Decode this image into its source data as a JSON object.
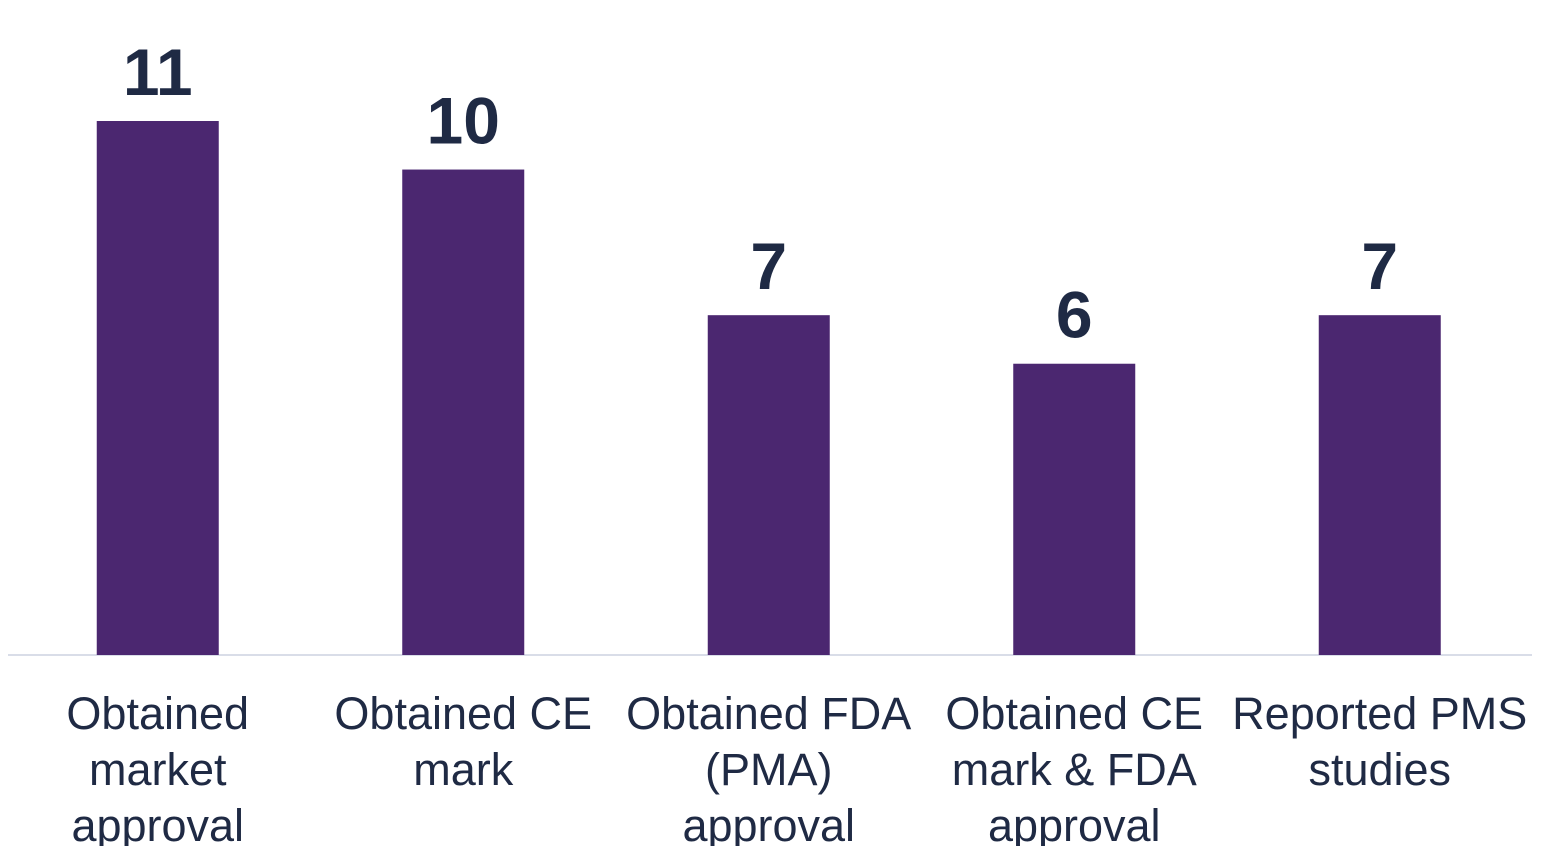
{
  "chart_data": {
    "type": "bar",
    "categories": [
      "Obtained market approval",
      "Obtained CE mark",
      "Obtained FDA (PMA) approval",
      "Obtained CE mark & FDA approval",
      "Reported PMS studies"
    ],
    "values": [
      11,
      10,
      7,
      6,
      7
    ],
    "color": "#4b2770"
  }
}
